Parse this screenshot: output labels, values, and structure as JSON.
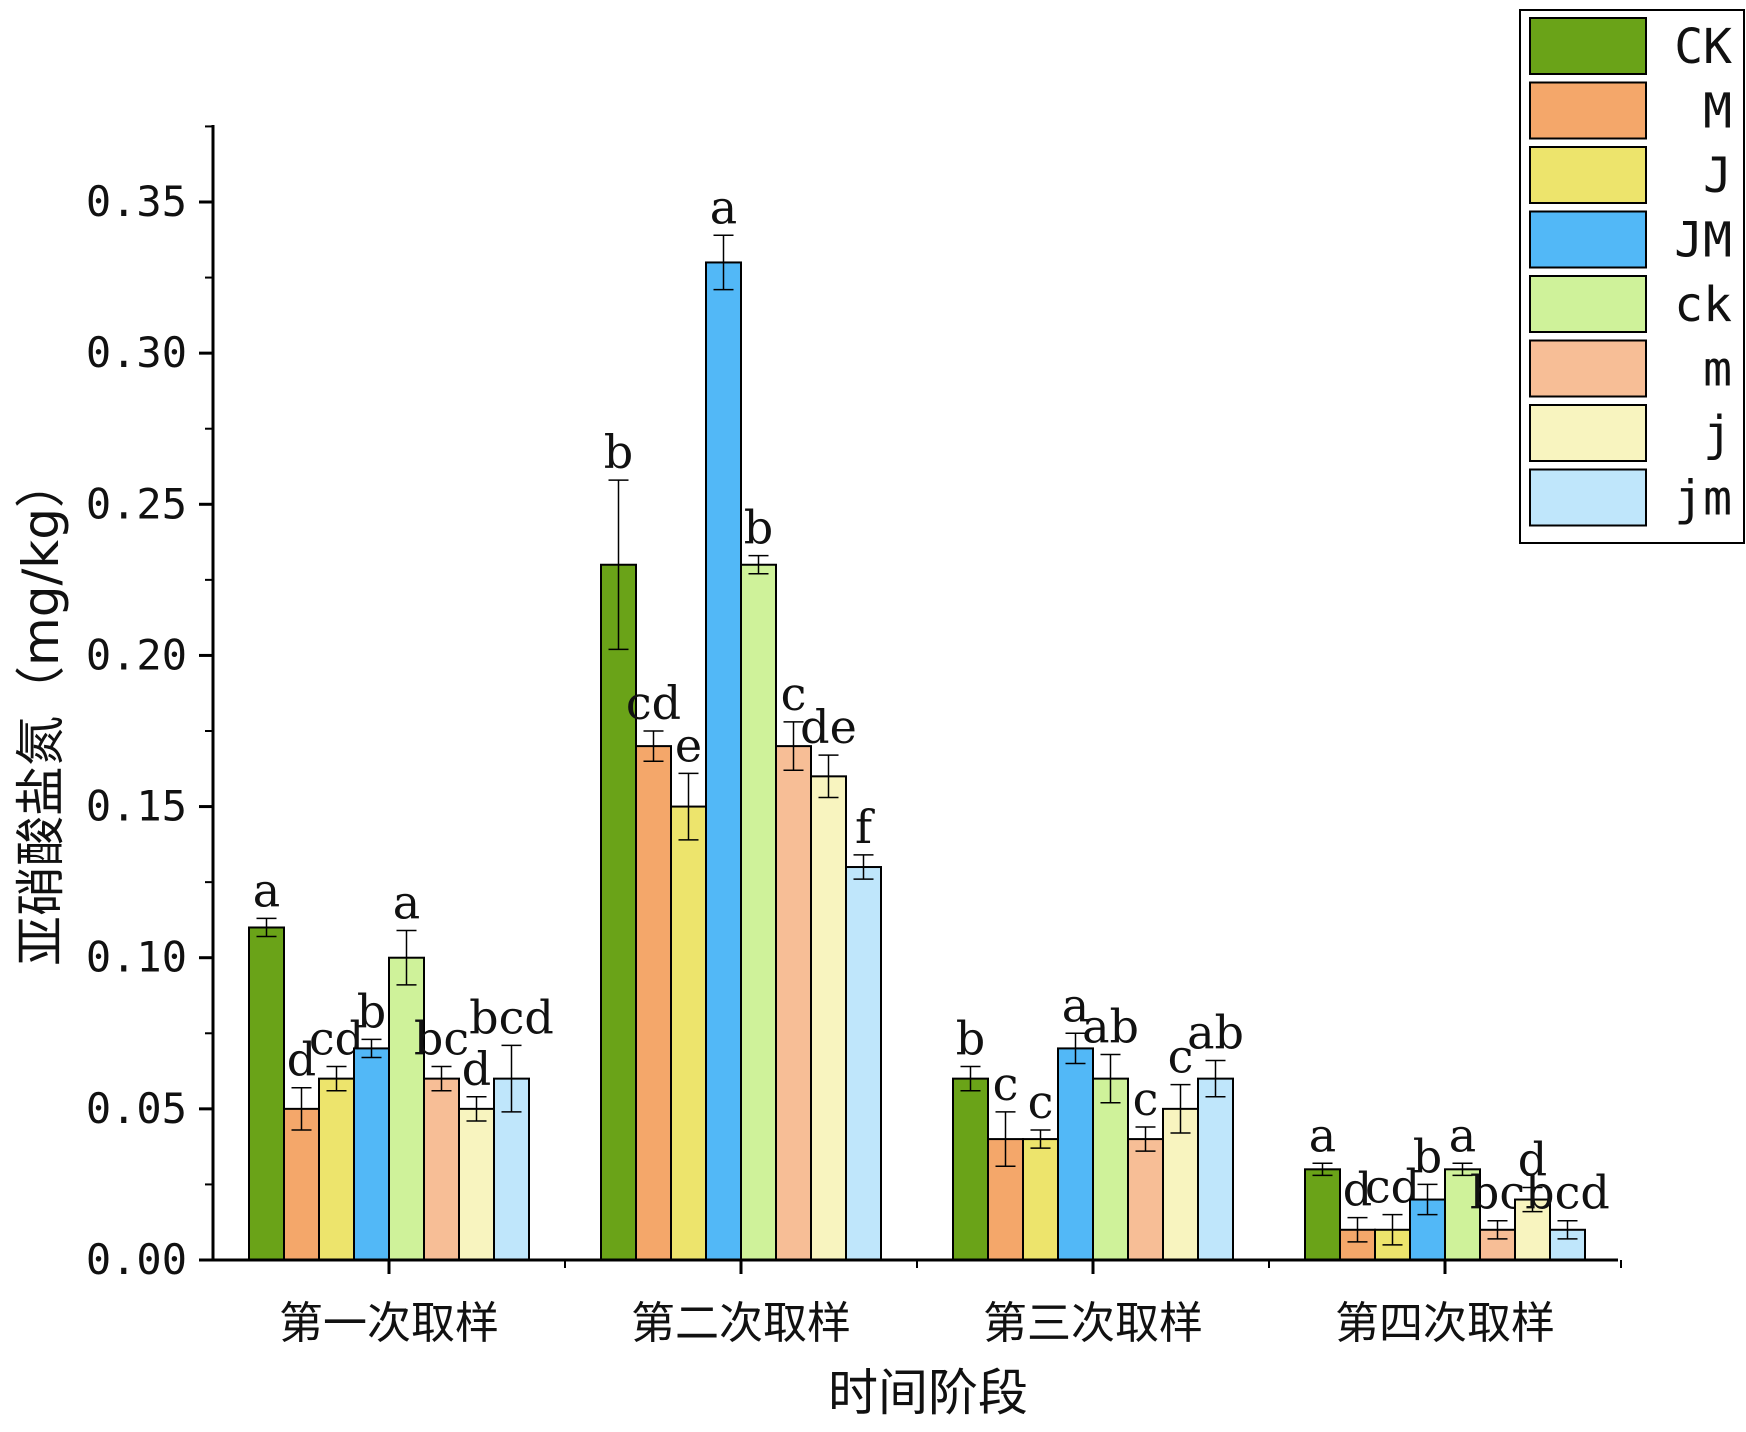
{
  "chart_data": {
    "type": "bar",
    "title": "",
    "xlabel": "时间阶段",
    "ylabel": "亚硝酸盐氮（mg/kg）",
    "ylim": [
      0,
      0.375
    ],
    "yticks": [
      "0.00",
      "0.05",
      "0.10",
      "0.15",
      "0.20",
      "0.25",
      "0.30",
      "0.35"
    ],
    "ytick_values": [
      0,
      0.05,
      0.1,
      0.15,
      0.2,
      0.25,
      0.3,
      0.35
    ],
    "categories": [
      "第一次取样",
      "第二次取样",
      "第三次取样",
      "第四次取样"
    ],
    "legend_position": "top-right",
    "series": [
      {
        "name": "CK",
        "color": "#6aa318",
        "values": [
          0.11,
          0.23,
          0.06,
          0.03
        ],
        "errors": [
          0.003,
          0.028,
          0.004,
          0.002
        ],
        "labels": [
          "a",
          "b",
          "b",
          "a"
        ]
      },
      {
        "name": "M",
        "color": "#f4a76a",
        "values": [
          0.05,
          0.17,
          0.04,
          0.01
        ],
        "errors": [
          0.007,
          0.005,
          0.009,
          0.004
        ],
        "labels": [
          "d",
          "cd",
          "c",
          "d"
        ]
      },
      {
        "name": "J",
        "color": "#ede46c",
        "values": [
          0.06,
          0.15,
          0.04,
          0.01
        ],
        "errors": [
          0.004,
          0.011,
          0.003,
          0.005
        ],
        "labels": [
          "cd",
          "e",
          "c",
          "cd"
        ]
      },
      {
        "name": "JM",
        "color": "#52b8f7",
        "values": [
          0.07,
          0.33,
          0.07,
          0.02
        ],
        "errors": [
          0.003,
          0.009,
          0.005,
          0.005
        ],
        "labels": [
          "b",
          "a",
          "a",
          "b"
        ]
      },
      {
        "name": "ck",
        "color": "#cff29a",
        "values": [
          0.1,
          0.23,
          0.06,
          0.03
        ],
        "errors": [
          0.009,
          0.003,
          0.008,
          0.002
        ],
        "labels": [
          "a",
          "b",
          "ab",
          "a"
        ]
      },
      {
        "name": "m",
        "color": "#f7be96",
        "values": [
          0.06,
          0.17,
          0.04,
          0.01
        ],
        "errors": [
          0.004,
          0.008,
          0.004,
          0.003
        ],
        "labels": [
          "bc",
          "c",
          "c",
          "bc"
        ]
      },
      {
        "name": "j",
        "color": "#f8f4bf",
        "values": [
          0.05,
          0.16,
          0.05,
          0.02
        ],
        "errors": [
          0.004,
          0.007,
          0.008,
          0.004
        ],
        "labels": [
          "d",
          "de",
          "c",
          "d"
        ]
      },
      {
        "name": "jm",
        "color": "#bfe6fb",
        "values": [
          0.06,
          0.13,
          0.06,
          0.01
        ],
        "errors": [
          0.011,
          0.004,
          0.006,
          0.003
        ],
        "labels": [
          "bcd",
          "f",
          "ab",
          "bcd"
        ]
      }
    ]
  }
}
